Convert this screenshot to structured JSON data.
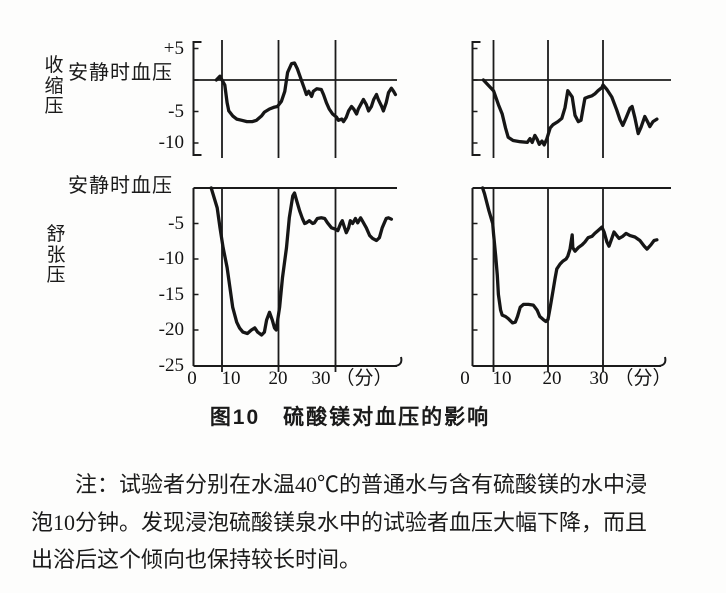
{
  "colors": {
    "ink": "#1b1b1b",
    "background": "#fdfdfc"
  },
  "figure": {
    "systolic_label": "收缩压",
    "resting_label_top": "安静时血压",
    "diastolic_label": "舒张压",
    "resting_label_bottom": "安静时血压",
    "caption": "图10　硫酸镁对血压的影响"
  },
  "note": {
    "lines": [
      "注：试验者分别在水温40℃的普通水与含有硫酸镁的水中浸",
      "泡10分钟。发现浸泡硫酸镁泉水中的试验者血压大幅下降，而且",
      "出浴后这个倾向也保持较长时间。"
    ]
  },
  "chart_data": [
    {
      "id": "top-left",
      "type": "line",
      "position": "top-left",
      "y_axis_label": "收缩压",
      "baseline_label": "安静时血压",
      "ylim": [
        -12,
        7
      ],
      "xlim": [
        0,
        41
      ],
      "vlines_x": [
        10,
        20,
        30
      ],
      "ytick_values": [
        5,
        -5,
        -10
      ],
      "ytick_labels": [
        "+5",
        "-5",
        "-10"
      ],
      "x": [
        8,
        9.3,
        10,
        10.5,
        10.9,
        11.2,
        11.9,
        12.6,
        13.5,
        14.4,
        15.4,
        16.1,
        17,
        17.5,
        18.4,
        19.3,
        19.8,
        20.5,
        21.1,
        21.6,
        22.3,
        22.8,
        23.3,
        24,
        24.6,
        24.9,
        25.3,
        25.8,
        26.1,
        26.7,
        27.5,
        27.9,
        28.4,
        28.9,
        29.5,
        30.2,
        30.5,
        31.1,
        31.4,
        31.9,
        32.3,
        32.8,
        33.2,
        33.7,
        34,
        34.6,
        34.9,
        35.4,
        35.8,
        36.3,
        36.7,
        37.2,
        37.5,
        38.1,
        38.4,
        38.9,
        39.3,
        39.8,
        40.2,
        40.5
      ],
      "y": [
        0,
        0.6,
        0,
        -0.8,
        -3.6,
        -4.9,
        -5.7,
        -6.2,
        -6.4,
        -6.6,
        -6.6,
        -6.4,
        -5.7,
        -5.1,
        -4.6,
        -4.3,
        -4.2,
        -3.4,
        -1.8,
        1.2,
        2.6,
        2.7,
        1.8,
        0,
        -1.5,
        -2.3,
        -1.8,
        -2.6,
        -1.8,
        -1.4,
        -1.5,
        -2.3,
        -3.6,
        -4.6,
        -5.4,
        -5.9,
        -6.4,
        -6.2,
        -6.6,
        -5.9,
        -4.9,
        -4.2,
        -4.6,
        -5.4,
        -4.6,
        -3.6,
        -3.1,
        -3.9,
        -4.9,
        -4.2,
        -3.1,
        -2.3,
        -3.1,
        -4.2,
        -4.9,
        -3.6,
        -2,
        -1.3,
        -1.8,
        -2.3
      ]
    },
    {
      "id": "top-right",
      "type": "line",
      "position": "top-right",
      "y_axis_label": "收缩压",
      "baseline_label": "安静时血压",
      "ylim": [
        -12,
        7
      ],
      "xlim": [
        0,
        41
      ],
      "vlines_x": [
        10,
        20,
        30
      ],
      "x": [
        5.2,
        10,
        10.9,
        11.6,
        12.2,
        12.7,
        13.6,
        14.9,
        16.2,
        16.7,
        17.1,
        17.6,
        18,
        18.4,
        18.9,
        19.3,
        19.8,
        20.4,
        20.9,
        21.8,
        22.5,
        23.1,
        23.6,
        24.4,
        24.9,
        25.5,
        26,
        26.4,
        26.7,
        27.3,
        28,
        28.5,
        29.1,
        29.8,
        30,
        30.7,
        31.6,
        32.5,
        33.1,
        33.6,
        34.2,
        34.9,
        35.3,
        35.8,
        36.4,
        36.9,
        37.6,
        38.2,
        38.5,
        39.1,
        39.8
      ],
      "y": [
        0,
        -1.7,
        -3.9,
        -5.4,
        -7.6,
        -9.1,
        -9.6,
        -9.8,
        -9.9,
        -9.3,
        -9.9,
        -8.8,
        -9.4,
        -10.2,
        -9.7,
        -10.3,
        -9.3,
        -7.6,
        -7.1,
        -6.6,
        -6.1,
        -4.4,
        -1.7,
        -2.7,
        -5.6,
        -6.6,
        -6.4,
        -4.4,
        -2.9,
        -2.7,
        -2.5,
        -2.2,
        -1.7,
        -1.2,
        -0.8,
        -1.5,
        -2.7,
        -4.8,
        -6.3,
        -7.2,
        -6,
        -4.5,
        -4.2,
        -6,
        -8.5,
        -7.5,
        -5.8,
        -6.8,
        -7.4,
        -6.6,
        -6.2
      ]
    },
    {
      "id": "bottom-left",
      "type": "line",
      "position": "bottom-left",
      "y_axis_label": "舒张压",
      "baseline_label": "安静时血压",
      "ylim": [
        -26,
        1
      ],
      "xlim": [
        0,
        41
      ],
      "vlines_x": [
        10,
        20,
        30
      ],
      "ytick_values": [
        -5,
        -10,
        -15,
        -20,
        -25
      ],
      "ytick_labels": [
        "-5",
        "-10",
        "-15",
        "-20",
        "-25"
      ],
      "xtick_values": [
        0,
        10,
        20,
        30
      ],
      "xtick_labels": [
        "0",
        "10",
        "20",
        "30"
      ],
      "xunit_label": "（分）",
      "x": [
        6.2,
        8.3,
        9.3,
        10.2,
        10.9,
        11.4,
        11.9,
        12.6,
        13.1,
        13.7,
        14.5,
        15.2,
        15.8,
        16.3,
        17,
        17.5,
        17.9,
        18.4,
        18.9,
        19.3,
        19.6,
        20.2,
        20.7,
        21.4,
        21.9,
        22.5,
        22.8,
        23.2,
        23.7,
        24.2,
        24.6,
        24.9,
        25.4,
        26,
        26.3,
        26.8,
        27.5,
        28.1,
        28.6,
        29.3,
        30,
        30.4,
        30.9,
        31.2,
        31.6,
        31.9,
        32.3,
        32.6,
        33,
        33.5,
        33.9,
        34.4,
        34.7,
        35.4,
        36,
        36.5,
        37.2,
        37.7,
        38.2,
        38.9,
        39.3,
        39.8
      ],
      "y": [
        0,
        -2.8,
        -5.6,
        -8.4,
        -11.2,
        -14,
        -16.8,
        -18.9,
        -19.7,
        -20.3,
        -20.5,
        -20,
        -19.7,
        -20.3,
        -20.7,
        -20.3,
        -18.6,
        -17.5,
        -18.6,
        -19.7,
        -20,
        -16.8,
        -12.6,
        -8.4,
        -4.2,
        -1.1,
        -0.7,
        -1.8,
        -3.2,
        -4.3,
        -5,
        -4.9,
        -4.6,
        -5,
        -4.9,
        -4.3,
        -4.2,
        -4.3,
        -4.9,
        -5.6,
        -5.8,
        -6,
        -5,
        -4.6,
        -5.6,
        -6.3,
        -5.6,
        -4.6,
        -5,
        -4.3,
        -4.9,
        -4.2,
        -4.6,
        -5.6,
        -6.7,
        -7.1,
        -7.4,
        -7,
        -5.6,
        -4.3,
        -4.2,
        -4.4
      ]
    },
    {
      "id": "bottom-right",
      "type": "line",
      "position": "bottom-right",
      "y_axis_label": "舒张压",
      "baseline_label": "安静时血压",
      "ylim": [
        -26,
        1
      ],
      "xlim": [
        0,
        41
      ],
      "vlines_x": [
        10,
        20,
        30
      ],
      "xtick_values": [
        0,
        10,
        20,
        30
      ],
      "xtick_labels": [
        "0",
        "10",
        "20",
        "30"
      ],
      "xunit_label": "（分）",
      "x": [
        4.8,
        5.7,
        7.8,
        9.6,
        10,
        10.4,
        10.7,
        10.9,
        11.3,
        11.6,
        12.2,
        12.7,
        13.5,
        14,
        14.4,
        14.9,
        15.5,
        16.4,
        17.3,
        18,
        18.5,
        19.1,
        19.6,
        20,
        20.4,
        20.9,
        21.3,
        21.6,
        22.2,
        22.7,
        23.3,
        23.6,
        24,
        24.4,
        24.5,
        24.9,
        25.5,
        26.2,
        26.7,
        27.3,
        28,
        28.5,
        29.1,
        29.8,
        30.2,
        30.7,
        31.1,
        31.6,
        32,
        32.5,
        32.9,
        33.6,
        34.2,
        34.9,
        35.8,
        36.7,
        37.5,
        38,
        38.7,
        39.3,
        39.8
      ],
      "y": [
        0,
        -0.8,
        -3.2,
        -5,
        -6.4,
        -9.6,
        -12.3,
        -15,
        -17.2,
        -17.9,
        -18.1,
        -18.4,
        -19,
        -18.9,
        -18.1,
        -16.8,
        -16.4,
        -16.4,
        -16.5,
        -17.2,
        -18.1,
        -18.5,
        -18.8,
        -18.5,
        -16.8,
        -14.5,
        -12.7,
        -11.4,
        -10.7,
        -10.3,
        -10,
        -9.6,
        -8.6,
        -6.6,
        -8.4,
        -8.9,
        -8.4,
        -8,
        -7.6,
        -7,
        -6.8,
        -6.4,
        -6,
        -5.5,
        -6.2,
        -7.6,
        -8.2,
        -7.1,
        -6.2,
        -6.7,
        -7.1,
        -6.8,
        -6.4,
        -6.7,
        -6.9,
        -7.4,
        -8.2,
        -8.6,
        -8,
        -7.4,
        -7.3
      ]
    }
  ]
}
